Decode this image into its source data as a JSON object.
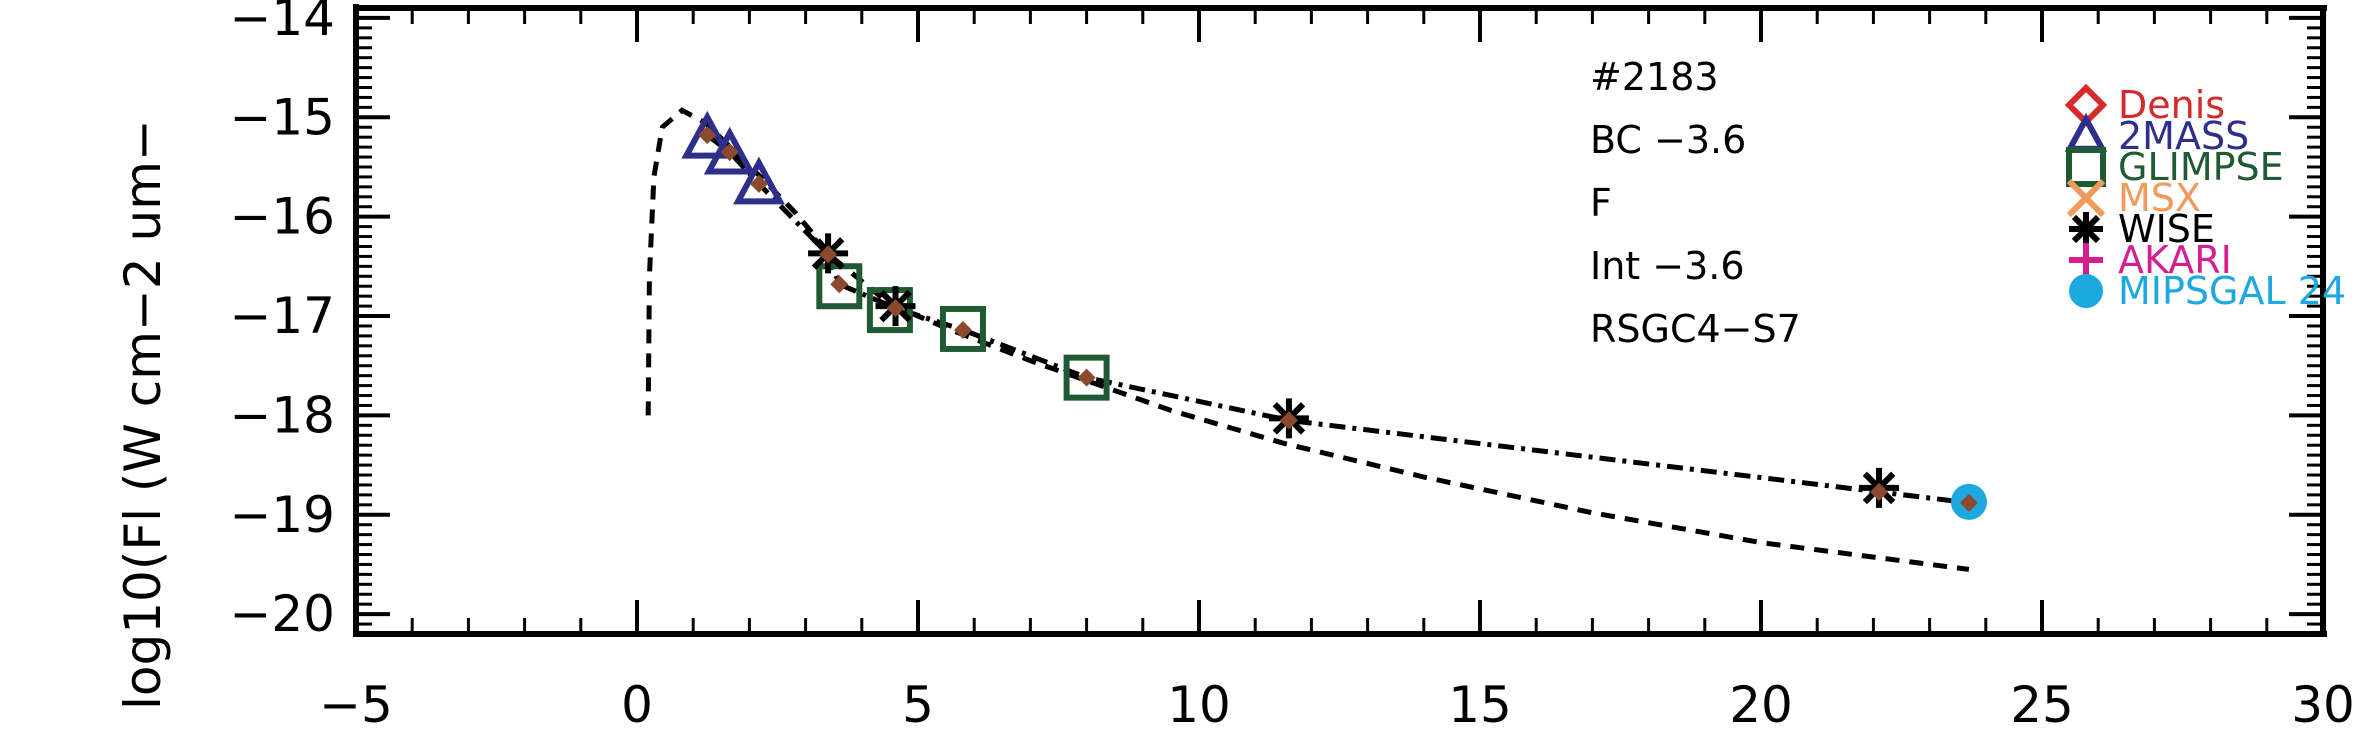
{
  "chart_data": {
    "type": "scatter",
    "ylabel": "log10(Fl (W cm−2 um−",
    "xlim": [
      -5,
      30
    ],
    "ylim": [
      -20.2,
      -13.9
    ],
    "x_ticks": [
      {
        "value": -5,
        "label": "−5"
      },
      {
        "value": 0,
        "label": "0"
      },
      {
        "value": 5,
        "label": "5"
      },
      {
        "value": 10,
        "label": "10"
      },
      {
        "value": 15,
        "label": "15"
      },
      {
        "value": 20,
        "label": "20"
      },
      {
        "value": 25,
        "label": "25"
      },
      {
        "value": 30,
        "label": "30"
      }
    ],
    "y_ticks": [
      {
        "value": -14,
        "label": "−14"
      },
      {
        "value": -15,
        "label": "−15"
      },
      {
        "value": -16,
        "label": "−16"
      },
      {
        "value": -17,
        "label": "−17"
      },
      {
        "value": -18,
        "label": "−18"
      },
      {
        "value": -19,
        "label": "−19"
      },
      {
        "value": -20,
        "label": "−20"
      }
    ],
    "annotations": [
      "#2183",
      "BC −3.6",
      "F",
      "Int −3.6",
      "RSGC4−S7"
    ],
    "legend": [
      {
        "name": "Denis",
        "color": "#d42a2a",
        "marker": "diamond"
      },
      {
        "name": "2MASS",
        "color": "#2e2f8a",
        "marker": "triangle"
      },
      {
        "name": "GLIMPSE",
        "color": "#1f5a32",
        "marker": "square"
      },
      {
        "name": "MSX",
        "color": "#f09a5c",
        "marker": "x"
      },
      {
        "name": "WISE",
        "color": "#000000",
        "marker": "asterisk"
      },
      {
        "name": "AKARI",
        "color": "#d61f8f",
        "marker": "plus"
      },
      {
        "name": "MIPSGAL 24",
        "color": "#1ea8e0",
        "marker": "circle"
      }
    ],
    "series": [
      {
        "marker": "triangle",
        "color": "#2e2f8a",
        "points": [
          [
            1.25,
            -15.22
          ],
          [
            1.65,
            -15.38
          ],
          [
            2.17,
            -15.68
          ]
        ]
      },
      {
        "marker": "square",
        "color": "#1f5a32",
        "points": [
          [
            3.6,
            -16.7
          ],
          [
            4.5,
            -16.94
          ],
          [
            5.8,
            -17.13
          ],
          [
            8.0,
            -17.62
          ]
        ]
      },
      {
        "marker": "asterisk",
        "color": "#000000",
        "points": [
          [
            3.4,
            -16.37
          ],
          [
            4.6,
            -16.9
          ],
          [
            11.6,
            -18.03
          ],
          [
            22.1,
            -18.73
          ]
        ]
      },
      {
        "marker": "circle",
        "color": "#1ea8e0",
        "points": [
          [
            23.7,
            -18.87
          ]
        ]
      },
      {
        "marker": "model-dot",
        "color": "#8b4a2e",
        "points": [
          [
            1.25,
            -15.18
          ],
          [
            1.65,
            -15.35
          ],
          [
            2.17,
            -15.67
          ],
          [
            3.4,
            -16.38
          ],
          [
            3.6,
            -16.68
          ],
          [
            4.6,
            -16.92
          ],
          [
            5.8,
            -17.14
          ],
          [
            8.0,
            -17.62
          ],
          [
            11.6,
            -18.05
          ],
          [
            22.1,
            -18.77
          ],
          [
            23.7,
            -18.88
          ]
        ]
      }
    ],
    "curves": [
      {
        "style": "dashed",
        "points": [
          [
            0.2,
            -18.0
          ],
          [
            0.22,
            -16.6
          ],
          [
            0.3,
            -15.6
          ],
          [
            0.45,
            -15.1
          ],
          [
            0.8,
            -14.93
          ],
          [
            1.2,
            -15.05
          ],
          [
            1.7,
            -15.32
          ],
          [
            2.2,
            -15.6
          ],
          [
            2.8,
            -15.95
          ],
          [
            3.5,
            -16.42
          ],
          [
            4.5,
            -16.88
          ],
          [
            5.5,
            -17.12
          ],
          [
            7.0,
            -17.45
          ],
          [
            8.0,
            -17.65
          ],
          [
            9.5,
            -17.95
          ],
          [
            11.5,
            -18.28
          ],
          [
            14.0,
            -18.62
          ],
          [
            17.0,
            -18.98
          ],
          [
            20.0,
            -19.28
          ],
          [
            23.7,
            -19.55
          ]
        ]
      },
      {
        "style": "dashdot",
        "points": [
          [
            1.25,
            -15.18
          ],
          [
            1.65,
            -15.35
          ],
          [
            2.17,
            -15.67
          ],
          [
            3.4,
            -16.38
          ],
          [
            3.6,
            -16.68
          ],
          [
            4.6,
            -16.92
          ],
          [
            5.8,
            -17.14
          ],
          [
            8.0,
            -17.62
          ],
          [
            11.6,
            -18.05
          ],
          [
            22.1,
            -18.77
          ],
          [
            23.7,
            -18.88
          ]
        ]
      }
    ]
  }
}
